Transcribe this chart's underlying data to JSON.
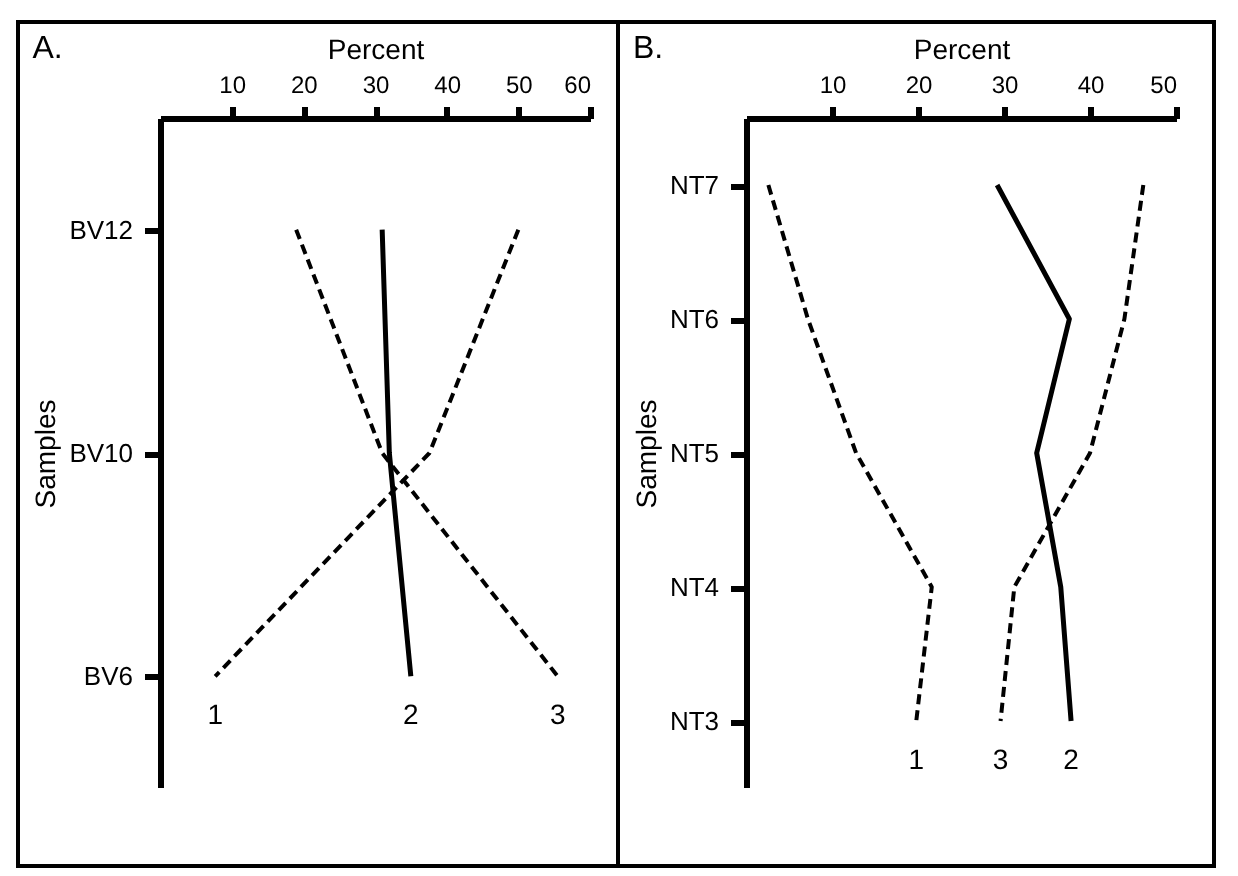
{
  "chart_data": [
    {
      "type": "line",
      "title": "A.",
      "xlabel": "Percent",
      "ylabel": "Samples",
      "orientation": "horizontal",
      "categories": [
        "BV12",
        "BV10",
        "BV6"
      ],
      "xlim": [
        0,
        60
      ],
      "xticks": [
        10,
        20,
        30,
        40,
        50,
        60
      ],
      "grid": false,
      "series": [
        {
          "name": "1",
          "color": "#000000",
          "line_style": "dashed",
          "values": [
            50,
            37.6,
            7.7
          ]
        },
        {
          "name": "2",
          "color": "#000000",
          "line_style": "solid",
          "values": [
            31,
            32,
            35
          ]
        },
        {
          "name": "3",
          "color": "#000000",
          "line_style": "dashed",
          "values": [
            19,
            31,
            55.5
          ]
        }
      ]
    },
    {
      "type": "line",
      "title": "B.",
      "xlabel": "Percent",
      "ylabel": "Samples",
      "orientation": "horizontal",
      "categories": [
        "NT7",
        "NT6",
        "NT5",
        "NT4",
        "NT3"
      ],
      "xlim": [
        0,
        50
      ],
      "xticks": [
        10,
        20,
        30,
        40,
        50
      ],
      "grid": false,
      "series": [
        {
          "name": "1",
          "color": "#000000",
          "line_style": "dashed",
          "values": [
            2.6,
            7.2,
            12.8,
            21.6,
            19.8
          ]
        },
        {
          "name": "2",
          "color": "#000000",
          "line_style": "solid",
          "values": [
            29.2,
            37.6,
            33.8,
            36.6,
            37.8
          ]
        },
        {
          "name": "3",
          "color": "#000000",
          "line_style": "dashed",
          "values": [
            46.2,
            44,
            40,
            31.2,
            29.6
          ]
        }
      ]
    }
  ]
}
